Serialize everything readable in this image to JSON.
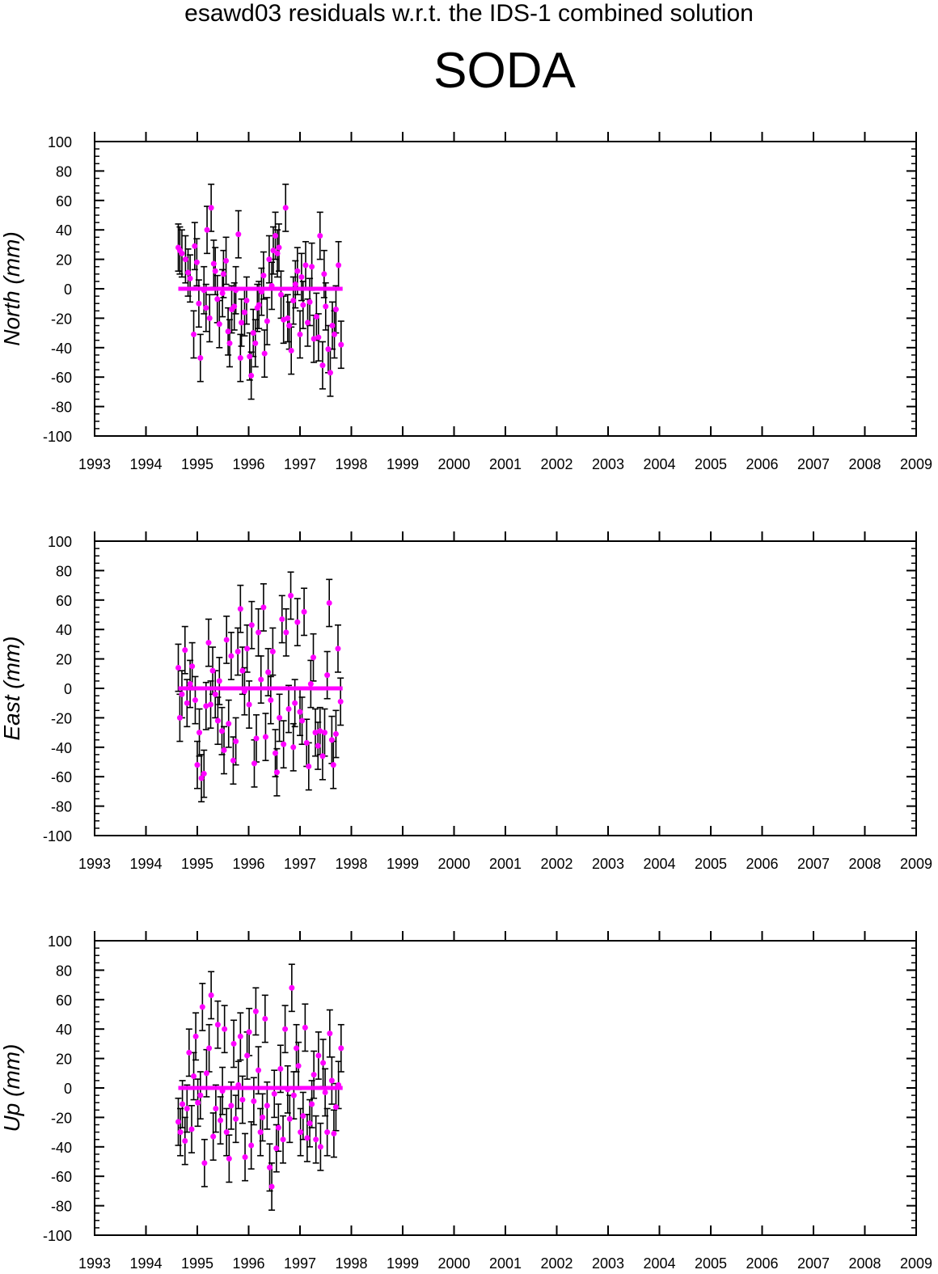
{
  "header": {
    "subtitle": "esawd03 residuals w.r.t. the IDS-1 combined solution",
    "title": "SODA"
  },
  "colors": {
    "points": "#ff00ff",
    "errorbars": "#000000",
    "zero_line": "#ff00ff",
    "frame": "#000000"
  },
  "chart_data": [
    {
      "type": "scatter",
      "title": "",
      "ylabel": "North (mm)",
      "xlabel": "",
      "xlim": [
        1993,
        2009
      ],
      "ylim": [
        -100,
        100
      ],
      "x_ticks": [
        "1993",
        "1994",
        "1995",
        "1996",
        "1997",
        "1998",
        "1999",
        "2000",
        "2001",
        "2002",
        "2003",
        "2004",
        "2005",
        "2006",
        "2007",
        "2008",
        "2009"
      ],
      "y_ticks": [
        "100",
        "80",
        "60",
        "40",
        "20",
        "0",
        "-20",
        "-40",
        "-60",
        "-80",
        "-100"
      ],
      "error_bar": 16,
      "reference_line": {
        "y": 0,
        "x_range": [
          1994.63,
          1997.83
        ]
      },
      "series": [
        {
          "x": [
            1994.63,
            1994.66,
            1994.7,
            1994.77,
            1994.82,
            1994.86,
            1994.93,
            1994.95,
            1994.99,
            1995.03,
            1995.06,
            1995.13,
            1995.17,
            1995.19,
            1995.24,
            1995.27,
            1995.32,
            1995.35,
            1995.39,
            1995.43,
            1995.49,
            1995.51,
            1995.56,
            1995.6,
            1995.63,
            1995.67,
            1995.72,
            1995.75,
            1995.8,
            1995.84,
            1995.86,
            1995.92,
            1995.96,
            1996.02,
            1996.05,
            1996.09,
            1996.13,
            1996.17,
            1996.2,
            1996.25,
            1996.29,
            1996.31,
            1996.36,
            1996.4,
            1996.45,
            1996.48,
            1996.52,
            1996.56,
            1996.59,
            1996.63,
            1996.68,
            1996.72,
            1996.76,
            1996.79,
            1996.83,
            1996.87,
            1996.91,
            1996.95,
            1997.0,
            1997.03,
            1997.06,
            1997.11,
            1997.15,
            1997.19,
            1997.23,
            1997.27,
            1997.32,
            1997.36,
            1997.39,
            1997.44,
            1997.47,
            1997.5,
            1997.55,
            1997.59,
            1997.63,
            1997.67,
            1997.7,
            1997.75,
            1997.8
          ],
          "y": [
            28,
            26,
            24,
            20,
            11,
            7,
            -31,
            29,
            18,
            -10,
            -47,
            -1,
            -13,
            40,
            -20,
            55,
            17,
            12,
            -7,
            -24,
            -3,
            10,
            19,
            -29,
            -37,
            -14,
            -12,
            -1,
            37,
            -47,
            -23,
            -16,
            -8,
            -46,
            -59,
            -30,
            -37,
            -13,
            -11,
            -2,
            9,
            -44,
            -22,
            20,
            2,
            26,
            36,
            24,
            28,
            -4,
            -21,
            55,
            -20,
            -25,
            -42,
            -8,
            3,
            12,
            -31,
            8,
            -11,
            16,
            -23,
            -9,
            15,
            -34,
            -19,
            -33,
            36,
            -52,
            10,
            -12,
            -41,
            -57,
            -25,
            -31,
            -14,
            16,
            -38
          ]
        }
      ]
    },
    {
      "type": "scatter",
      "title": "",
      "ylabel": "East (mm)",
      "xlabel": "",
      "xlim": [
        1993,
        2009
      ],
      "ylim": [
        -100,
        100
      ],
      "x_ticks": [
        "1993",
        "1994",
        "1995",
        "1996",
        "1997",
        "1998",
        "1999",
        "2000",
        "2001",
        "2002",
        "2003",
        "2004",
        "2005",
        "2006",
        "2007",
        "2008",
        "2009"
      ],
      "y_ticks": [
        "100",
        "80",
        "60",
        "40",
        "20",
        "0",
        "-20",
        "-40",
        "-60",
        "-80",
        "-100"
      ],
      "error_bar": 16,
      "reference_line": {
        "y": 0,
        "x_range": [
          1994.63,
          1997.83
        ]
      },
      "series": [
        {
          "x": [
            1994.63,
            1994.66,
            1994.7,
            1994.76,
            1994.8,
            1994.86,
            1994.9,
            1994.96,
            1995.0,
            1995.04,
            1995.08,
            1995.13,
            1995.17,
            1995.22,
            1995.26,
            1995.3,
            1995.35,
            1995.4,
            1995.43,
            1995.48,
            1995.52,
            1995.57,
            1995.61,
            1995.66,
            1995.7,
            1995.75,
            1995.79,
            1995.84,
            1995.88,
            1995.92,
            1995.97,
            1996.01,
            1996.06,
            1996.11,
            1996.15,
            1996.19,
            1996.24,
            1996.29,
            1996.33,
            1996.38,
            1996.43,
            1996.47,
            1996.52,
            1996.55,
            1996.6,
            1996.65,
            1996.68,
            1996.73,
            1996.78,
            1996.82,
            1996.87,
            1996.9,
            1996.95,
            1997.0,
            1997.04,
            1997.08,
            1997.13,
            1997.17,
            1997.21,
            1997.26,
            1997.3,
            1997.35,
            1997.39,
            1997.44,
            1997.48,
            1997.53,
            1997.57,
            1997.62,
            1997.65,
            1997.7,
            1997.74,
            1997.79
          ],
          "y": [
            14,
            -20,
            -4,
            26,
            -10,
            3,
            15,
            -8,
            -52,
            -30,
            -61,
            -58,
            -12,
            31,
            -11,
            12,
            -4,
            -22,
            5,
            -29,
            -42,
            33,
            -24,
            22,
            -49,
            -36,
            25,
            54,
            12,
            -2,
            27,
            -11,
            43,
            -51,
            -34,
            38,
            6,
            55,
            -33,
            11,
            -8,
            25,
            -44,
            -57,
            -20,
            47,
            -38,
            38,
            -14,
            63,
            -40,
            -10,
            45,
            -16,
            -22,
            52,
            -37,
            -53,
            3,
            21,
            -30,
            -39,
            -29,
            -46,
            -30,
            9,
            58,
            -35,
            -52,
            -31,
            27,
            -9
          ]
        }
      ]
    },
    {
      "type": "scatter",
      "title": "",
      "ylabel": "Up (mm)",
      "xlabel": "",
      "xlim": [
        1993,
        2009
      ],
      "ylim": [
        -100,
        100
      ],
      "x_ticks": [
        "1993",
        "1994",
        "1995",
        "1996",
        "1997",
        "1998",
        "1999",
        "2000",
        "2001",
        "2002",
        "2003",
        "2004",
        "2005",
        "2006",
        "2007",
        "2008",
        "2009"
      ],
      "y_ticks": [
        "100",
        "80",
        "60",
        "40",
        "20",
        "0",
        "-20",
        "-40",
        "-60",
        "-80",
        "-100"
      ],
      "error_bar": 16,
      "reference_line": {
        "y": 0,
        "x_range": [
          1994.63,
          1997.83
        ]
      },
      "series": [
        {
          "x": [
            1994.63,
            1994.67,
            1994.71,
            1994.76,
            1994.8,
            1994.84,
            1994.89,
            1994.93,
            1994.97,
            1995.01,
            1995.06,
            1995.1,
            1995.14,
            1995.18,
            1995.23,
            1995.27,
            1995.31,
            1995.36,
            1995.4,
            1995.45,
            1995.49,
            1995.53,
            1995.57,
            1995.62,
            1995.66,
            1995.71,
            1995.75,
            1995.8,
            1995.84,
            1995.88,
            1995.93,
            1995.97,
            1996.01,
            1996.05,
            1996.1,
            1996.14,
            1996.19,
            1996.23,
            1996.27,
            1996.32,
            1996.36,
            1996.41,
            1996.45,
            1996.5,
            1996.54,
            1996.58,
            1996.62,
            1996.67,
            1996.71,
            1996.76,
            1996.8,
            1996.84,
            1996.88,
            1996.93,
            1996.97,
            1997.01,
            1997.06,
            1997.1,
            1997.14,
            1997.19,
            1997.23,
            1997.27,
            1997.31,
            1997.36,
            1997.4,
            1997.45,
            1997.49,
            1997.53,
            1997.58,
            1997.62,
            1997.66,
            1997.7,
            1997.75,
            1997.8
          ],
          "y": [
            -23,
            -30,
            -11,
            -36,
            -14,
            24,
            -28,
            8,
            35,
            -10,
            -5,
            55,
            -51,
            10,
            27,
            63,
            -33,
            -14,
            43,
            -22,
            -2,
            40,
            -30,
            -48,
            -12,
            30,
            -21,
            2,
            35,
            -8,
            -47,
            22,
            38,
            -39,
            -9,
            52,
            12,
            -30,
            -20,
            47,
            -12,
            -54,
            -67,
            -4,
            -41,
            -27,
            13,
            -35,
            40,
            -1,
            -21,
            68,
            -5,
            27,
            15,
            -30,
            -19,
            41,
            -34,
            -24,
            -11,
            9,
            -35,
            22,
            -40,
            17,
            -3,
            -30,
            37,
            5,
            -31,
            -13,
            2,
            27
          ]
        }
      ]
    }
  ]
}
